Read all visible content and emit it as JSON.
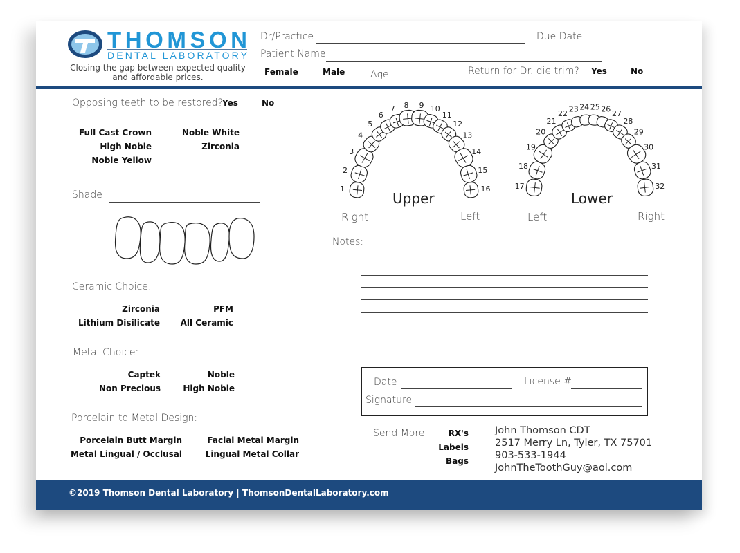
{
  "logo": {
    "name": "THOMSON",
    "sub": "DENTAL LABORATORY",
    "tagline1": "Closing the gap between expected quality",
    "tagline2": "and affordable prices.",
    "color": "#2196d6"
  },
  "header": {
    "dr_practice": "Dr/Practice",
    "due_date": "Due Date",
    "patient_name": "Patient Name",
    "female": "Female",
    "male": "Male",
    "age": "Age",
    "return_trim": "Return for Dr. die  trim?",
    "yes": "Yes",
    "no": "No"
  },
  "opposing": {
    "label": "Opposing teeth to be restored?",
    "yes": "Yes",
    "no": "No"
  },
  "materials": [
    "Full Cast Crown",
    "Noble White",
    "High Noble",
    "Zirconia",
    "Noble Yellow"
  ],
  "shade": "Shade",
  "ceramic": {
    "label": "Ceramic Choice:",
    "options": [
      "Zirconia",
      "PFM",
      "Lithium Disilicate",
      "All Ceramic"
    ]
  },
  "metal": {
    "label": "Metal Choice:",
    "options": [
      "Captek",
      "Noble",
      "Non Precious",
      "High Noble"
    ]
  },
  "porcelain": {
    "label": "Porcelain to Metal Design:",
    "options": [
      "Porcelain Butt Margin",
      "Facial Metal Margin",
      "Metal Lingual / Occlusal",
      "Lingual Metal Collar"
    ]
  },
  "chart": {
    "upper": "Upper",
    "lower": "Lower",
    "upper_right": "Right",
    "upper_left": "Left",
    "lower_left": "Left",
    "lower_right": "Right",
    "upper_teeth": [
      1,
      2,
      3,
      4,
      5,
      6,
      7,
      8,
      9,
      10,
      11,
      12,
      13,
      14,
      15,
      16
    ],
    "lower_teeth": [
      17,
      18,
      19,
      20,
      21,
      22,
      23,
      24,
      25,
      26,
      27,
      28,
      29,
      30,
      31,
      32
    ]
  },
  "notes": "Notes:",
  "signature_box": {
    "date": "Date",
    "license": "License #",
    "signature": "Signature"
  },
  "send_more": {
    "label": "Send More",
    "options": [
      "RX's",
      "Labels",
      "Bags"
    ]
  },
  "contact": {
    "name": "John Thomson CDT",
    "address": "2517 Merry Ln, Tyler, TX 75701",
    "phone": "903-533-1944",
    "email": "JohnTheToothGuy@aol.com"
  },
  "footer": "©2019 Thomson Dental Laboratory | ThomsonDentalLaboratory.com",
  "accent": "#1d4a7f"
}
